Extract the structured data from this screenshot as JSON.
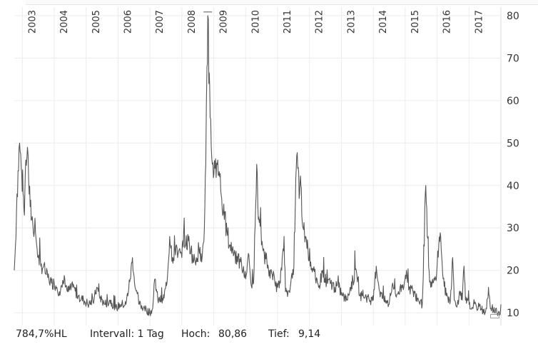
{
  "chart_data": {
    "type": "line",
    "title": "",
    "xlabel": "",
    "ylabel": "",
    "ylim": [
      7,
      82
    ],
    "xlim": [
      "2002-10-01",
      "2017-12-31"
    ],
    "y_ticks": [
      10,
      20,
      30,
      40,
      50,
      60,
      70,
      80
    ],
    "x_ticks": [
      "2003",
      "2004",
      "2005",
      "2006",
      "2007",
      "2008",
      "2009",
      "2010",
      "2011",
      "2012",
      "2013",
      "2014",
      "2015",
      "2016",
      "2017"
    ],
    "grid": true,
    "line_color": "#555555",
    "series": [
      {
        "x": [
          "2002-10-01",
          "2002-10-15",
          "2002-11-01",
          "2002-12-01",
          "2002-12-20",
          "2003-01-10",
          "2003-01-25",
          "2003-02-10",
          "2003-03-01",
          "2003-03-15",
          "2003-04-01",
          "2003-05-01",
          "2003-06-01",
          "2003-07-01",
          "2003-08-01",
          "2003-09-01",
          "2003-10-01",
          "2003-11-01",
          "2003-12-01",
          "2004-01-01",
          "2004-02-01",
          "2004-03-01",
          "2004-04-01",
          "2004-05-01",
          "2004-06-01",
          "2004-08-01",
          "2004-10-01",
          "2004-12-01",
          "2005-02-01",
          "2005-04-01",
          "2005-05-01",
          "2005-06-01",
          "2005-08-01",
          "2005-10-01",
          "2005-12-01",
          "2006-02-01",
          "2006-04-01",
          "2006-05-20",
          "2006-06-15",
          "2006-07-15",
          "2006-09-01",
          "2006-11-01",
          "2007-01-01",
          "2007-02-01",
          "2007-02-28",
          "2007-04-01",
          "2007-06-01",
          "2007-07-15",
          "2007-08-15",
          "2007-09-15",
          "2007-11-01",
          "2007-11-20",
          "2008-01-01",
          "2008-01-22",
          "2008-02-15",
          "2008-03-15",
          "2008-04-15",
          "2008-05-15",
          "2008-06-15",
          "2008-07-15",
          "2008-08-15",
          "2008-09-15",
          "2008-10-01",
          "2008-10-15",
          "2008-10-24",
          "2008-11-05",
          "2008-11-20",
          "2008-12-15",
          "2009-01-15",
          "2009-02-15",
          "2009-03-10",
          "2009-04-01",
          "2009-05-01",
          "2009-06-01",
          "2009-07-01",
          "2009-08-01",
          "2009-09-01",
          "2009-10-01",
          "2009-11-01",
          "2009-12-01",
          "2010-01-01",
          "2010-02-01",
          "2010-03-01",
          "2010-04-01",
          "2010-05-07",
          "2010-05-20",
          "2010-06-10",
          "2010-07-01",
          "2010-08-01",
          "2010-09-01",
          "2010-10-01",
          "2010-11-01",
          "2010-12-01",
          "2011-01-01",
          "2011-02-01",
          "2011-03-16",
          "2011-04-01",
          "2011-05-01",
          "2011-06-01",
          "2011-07-01",
          "2011-08-08",
          "2011-08-20",
          "2011-09-10",
          "2011-09-25",
          "2011-10-05",
          "2011-10-20",
          "2011-11-15",
          "2011-12-15",
          "2012-01-15",
          "2012-02-15",
          "2012-03-15",
          "2012-04-15",
          "2012-06-01",
          "2012-07-15",
          "2012-09-01",
          "2012-10-15",
          "2012-12-01",
          "2013-01-15",
          "2013-03-01",
          "2013-04-15",
          "2013-06-20",
          "2013-08-01",
          "2013-10-01",
          "2013-11-15",
          "2014-01-01",
          "2014-02-03",
          "2014-03-15",
          "2014-05-01",
          "2014-07-01",
          "2014-08-10",
          "2014-09-15",
          "2014-10-15",
          "2014-11-15",
          "2014-12-16",
          "2015-01-15",
          "2015-02-15",
          "2015-04-01",
          "2015-06-01",
          "2015-07-15",
          "2015-08-24",
          "2015-09-10",
          "2015-10-01",
          "2015-10-20",
          "2015-11-15",
          "2015-12-15",
          "2016-01-20",
          "2016-02-11",
          "2016-03-10",
          "2016-04-15",
          "2016-06-01",
          "2016-06-27",
          "2016-07-15",
          "2016-09-01",
          "2016-09-12",
          "2016-10-15",
          "2016-11-04",
          "2016-11-20",
          "2017-01-01",
          "2017-02-15",
          "2017-03-20",
          "2017-04-14",
          "2017-05-01",
          "2017-06-15",
          "2017-07-20",
          "2017-08-11",
          "2017-09-01",
          "2017-10-01",
          "2017-11-01",
          "2017-11-15",
          "2017-12-01",
          "2017-12-20",
          "2017-12-31"
        ],
        "y": [
          20,
          26,
          38,
          50,
          44,
          38,
          33,
          46,
          49,
          41,
          35,
          31,
          29,
          23,
          21,
          21,
          19,
          18,
          17,
          17,
          16,
          15,
          16,
          18,
          15,
          16,
          14,
          13,
          12,
          13,
          16,
          14,
          12,
          13,
          11,
          12,
          12,
          18,
          23,
          16,
          12,
          11,
          10,
          11,
          18,
          13,
          13,
          17,
          28,
          23,
          26,
          24,
          23,
          29,
          26,
          27,
          25,
          22,
          23,
          25,
          22,
          30,
          45,
          68,
          80,
          64,
          56,
          45,
          44,
          46,
          42,
          37,
          32,
          29,
          26,
          25,
          24,
          22,
          22,
          20,
          18,
          24,
          17,
          17,
          45,
          35,
          32,
          26,
          24,
          22,
          20,
          19,
          17,
          16,
          17,
          28,
          15,
          15,
          17,
          19,
          47,
          44,
          38,
          40,
          33,
          30,
          28,
          25,
          22,
          20,
          17,
          16,
          20,
          17,
          17,
          16,
          16,
          14,
          13,
          16,
          20,
          14,
          14,
          13,
          13,
          21,
          15,
          13,
          12,
          17,
          14,
          15,
          15,
          16,
          20,
          16,
          15,
          13,
          12,
          40,
          28,
          20,
          16,
          17,
          18,
          26,
          28,
          18,
          14,
          13,
          23,
          13,
          12,
          15,
          13,
          21,
          13,
          12,
          11,
          12,
          11,
          12,
          10,
          11,
          16,
          11,
          10,
          11,
          10,
          10,
          9.5,
          12
        ],
        "style": "volatility-jagged"
      }
    ]
  },
  "footer": {
    "mode": "784,7%HL",
    "interval": "Intervall: 1 Tag",
    "high_label": "Hoch:",
    "high_value": "80,86",
    "low_label": "Tief:",
    "low_value": "9,14"
  },
  "colors": {
    "series": "#555555",
    "grid": "#ececec",
    "axis_text": "#333333"
  }
}
